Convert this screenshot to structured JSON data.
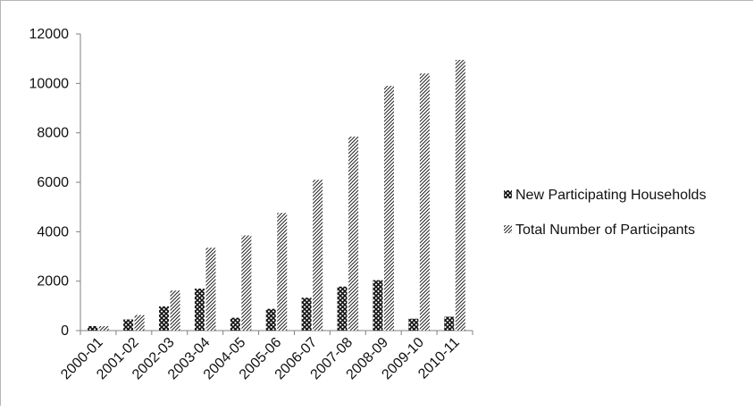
{
  "chart_data": {
    "type": "bar",
    "categories": [
      "2000-01",
      "2001-02",
      "2002-03",
      "2003-04",
      "2004-05",
      "2005-06",
      "2006-07",
      "2007-08",
      "2008-09",
      "2009-10",
      "2010-11"
    ],
    "series": [
      {
        "name": "New Participating Households",
        "pattern": "crosshatch",
        "values": [
          180,
          450,
          980,
          1700,
          520,
          880,
          1330,
          1780,
          2040,
          480,
          560
        ]
      },
      {
        "name": "Total Number of Participants",
        "pattern": "diagonal",
        "values": [
          180,
          630,
          1620,
          3350,
          3850,
          4760,
          6100,
          7850,
          9900,
          10400,
          10950
        ]
      }
    ],
    "title": "",
    "xlabel": "",
    "ylabel": "",
    "ylim": [
      0,
      12000
    ],
    "yticks": [
      "0",
      "2000",
      "4000",
      "6000",
      "8000",
      "10000",
      "12000"
    ],
    "grid": false,
    "legend_position": "right",
    "colors": {
      "bar_fill": "#1a1a1a",
      "axis": "#808080"
    }
  }
}
